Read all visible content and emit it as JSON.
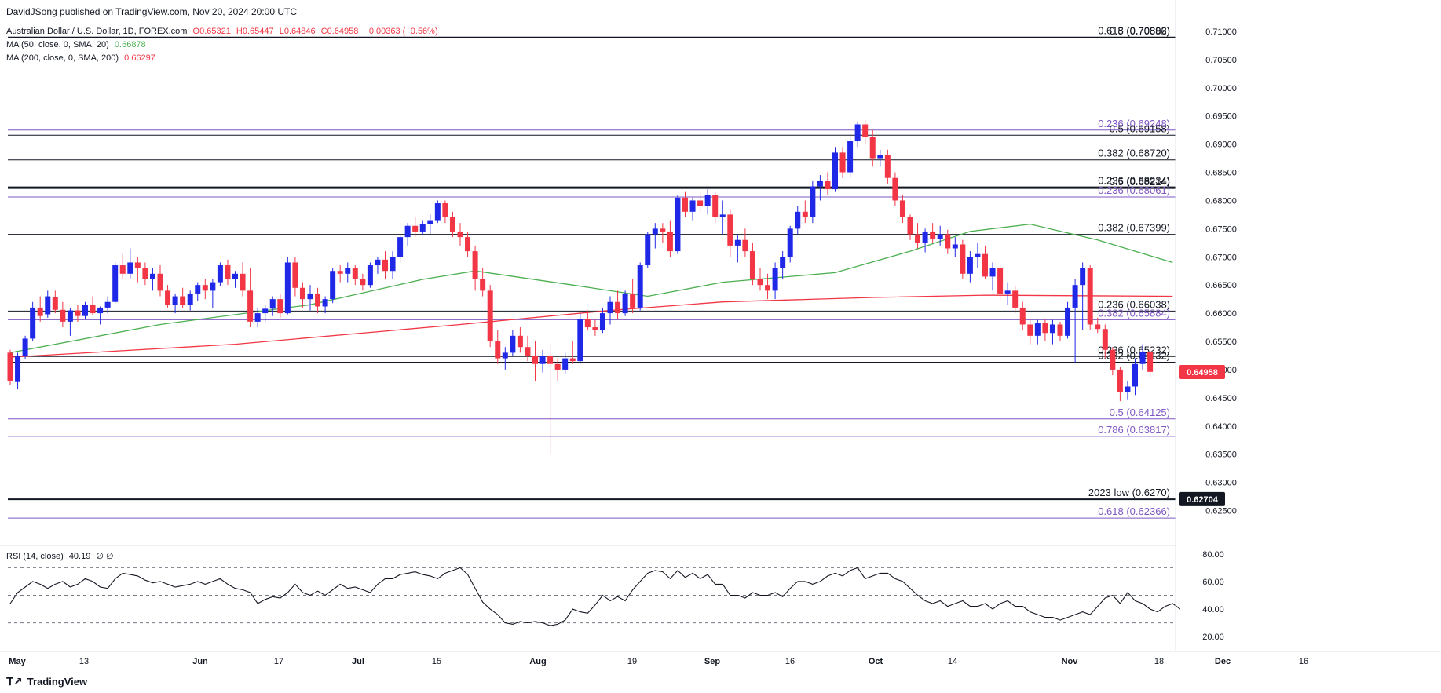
{
  "header": {
    "published": "DavidJSong published on TradingView.com, Nov 20, 2024 20:00 UTC",
    "symbol": "Australian Dollar / U.S. Dollar, 1D, FOREX.com",
    "o": "O0.65321",
    "h": "H0.65447",
    "l": "L0.64846",
    "c": "C0.64958",
    "chg": "−0.00363 (−0.56%)",
    "ma50_label": "MA (50, close, 0, SMA, 20)",
    "ma50_value": "0.66878",
    "ma200_label": "MA (200, close, 0, SMA, 200)",
    "ma200_value": "0.66297",
    "rsi_label": "RSI (14, close)",
    "rsi_value": "40.19",
    "rsi_extra": "∅ ∅"
  },
  "colors": {
    "up": "#2028e8",
    "down": "#f23645",
    "ma50": "#4caf50",
    "ma200": "#f23645",
    "fib": "#7e57c2",
    "level": "#131722",
    "bg": "#ffffff"
  },
  "footer": {
    "brand": "TradingView",
    "logo_icon": "tradingview-logo-icon"
  },
  "chart_data": {
    "type": "candlestick",
    "y_axis": {
      "min": 0.6195,
      "max": 0.7125,
      "ticks": [
        "0.71000",
        "0.70500",
        "0.70000",
        "0.69500",
        "0.69000",
        "0.68500",
        "0.68000",
        "0.67500",
        "0.67000",
        "0.66500",
        "0.66000",
        "0.65500",
        "0.65000",
        "0.64500",
        "0.64000",
        "0.63500",
        "0.63000",
        "0.62500"
      ]
    },
    "x_axis": {
      "labels": [
        "May",
        "13",
        "Jun",
        "17",
        "Jul",
        "15",
        "Aug",
        "19",
        "Sep",
        "16",
        "Oct",
        "14",
        "Nov",
        "18",
        "Dec",
        "16"
      ],
      "bold_labels": [
        "May",
        "Jun",
        "Jul",
        "Aug",
        "Sep",
        "Oct",
        "Nov",
        "Dec"
      ]
    },
    "current_price": "0.64958",
    "low_2023_tag": "0.62704",
    "levels": [
      {
        "price": 0.70892,
        "label": "0.618 (0.70892)",
        "color": "#131722",
        "thick": true
      },
      {
        "price": 0.70886,
        "label": "0.5 (0.70886)",
        "color": "#131722",
        "thick": false
      },
      {
        "price": 0.69248,
        "label": "0.236 (0.69248)",
        "color": "#7e57c2",
        "thick": false
      },
      {
        "price": 0.69158,
        "label": "0.5 (0.69158)",
        "color": "#131722",
        "thick": false
      },
      {
        "price": 0.6872,
        "label": "0.382 (0.68720)",
        "color": "#131722",
        "thick": false
      },
      {
        "price": 0.68234,
        "label": "0.236 (0.68234)",
        "color": "#131722",
        "thick": true
      },
      {
        "price": 0.68214,
        "label": "0.5 (0.68214)",
        "color": "#131722",
        "thick": false
      },
      {
        "price": 0.68061,
        "label": "0.236 (0.68061)",
        "color": "#7e57c2",
        "thick": false
      },
      {
        "price": 0.67399,
        "label": "0.382 (0.67399)",
        "color": "#131722",
        "thick": false
      },
      {
        "price": 0.66038,
        "label": "0.236 (0.66038)",
        "color": "#131722",
        "thick": false
      },
      {
        "price": 0.65884,
        "label": "0.382 (0.65884)",
        "color": "#7e57c2",
        "thick": false
      },
      {
        "price": 0.65232,
        "label": "0.236 (0.65232)",
        "color": "#131722",
        "thick": false
      },
      {
        "price": 0.65132,
        "label": "0.382 (0.65132)",
        "color": "#131722",
        "thick": false
      },
      {
        "price": 0.64125,
        "label": "0.5 (0.64125)",
        "color": "#7e57c2",
        "thick": false
      },
      {
        "price": 0.63817,
        "label": "0.786 (0.63817)",
        "color": "#7e57c2",
        "thick": false
      },
      {
        "price": 0.627,
        "label": "2023 low (0.6270)",
        "color": "#131722",
        "thick": true
      },
      {
        "price": 0.62366,
        "label": "0.618 (0.62366)",
        "color": "#7e57c2",
        "thick": false
      }
    ],
    "candles": [
      [
        0.653,
        0.6535,
        0.6472,
        0.648
      ],
      [
        0.6478,
        0.653,
        0.6465,
        0.6525
      ],
      [
        0.6524,
        0.656,
        0.6518,
        0.6555
      ],
      [
        0.6555,
        0.662,
        0.655,
        0.661
      ],
      [
        0.661,
        0.663,
        0.6585,
        0.6595
      ],
      [
        0.6598,
        0.664,
        0.6592,
        0.663
      ],
      [
        0.6628,
        0.664,
        0.66,
        0.6606
      ],
      [
        0.6606,
        0.662,
        0.6575,
        0.6585
      ],
      [
        0.6585,
        0.661,
        0.656,
        0.6605
      ],
      [
        0.6605,
        0.6615,
        0.6585,
        0.6595
      ],
      [
        0.6595,
        0.662,
        0.659,
        0.6615
      ],
      [
        0.6615,
        0.663,
        0.6596,
        0.66
      ],
      [
        0.66,
        0.6612,
        0.658,
        0.661
      ],
      [
        0.661,
        0.663,
        0.66,
        0.662
      ],
      [
        0.662,
        0.669,
        0.6618,
        0.6685
      ],
      [
        0.6685,
        0.6705,
        0.666,
        0.667
      ],
      [
        0.667,
        0.6715,
        0.666,
        0.669
      ],
      [
        0.669,
        0.67,
        0.6655,
        0.668
      ],
      [
        0.668,
        0.669,
        0.665,
        0.666
      ],
      [
        0.666,
        0.668,
        0.664,
        0.667
      ],
      [
        0.667,
        0.6685,
        0.663,
        0.664
      ],
      [
        0.664,
        0.665,
        0.661,
        0.6615
      ],
      [
        0.6615,
        0.6635,
        0.66,
        0.663
      ],
      [
        0.663,
        0.6645,
        0.661,
        0.6615
      ],
      [
        0.6615,
        0.664,
        0.6605,
        0.6635
      ],
      [
        0.6635,
        0.6655,
        0.6622,
        0.665
      ],
      [
        0.665,
        0.666,
        0.6625,
        0.664
      ],
      [
        0.664,
        0.666,
        0.661,
        0.6655
      ],
      [
        0.6655,
        0.669,
        0.6648,
        0.6685
      ],
      [
        0.6685,
        0.6695,
        0.665,
        0.666
      ],
      [
        0.666,
        0.6675,
        0.6645,
        0.667
      ],
      [
        0.667,
        0.669,
        0.663,
        0.664
      ],
      [
        0.664,
        0.668,
        0.6575,
        0.6585
      ],
      [
        0.6585,
        0.661,
        0.6575,
        0.66
      ],
      [
        0.66,
        0.6615,
        0.6585,
        0.6608
      ],
      [
        0.6608,
        0.663,
        0.6595,
        0.6625
      ],
      [
        0.6625,
        0.6635,
        0.6592,
        0.66
      ],
      [
        0.66,
        0.67,
        0.6598,
        0.669
      ],
      [
        0.669,
        0.67,
        0.663,
        0.6645
      ],
      [
        0.6645,
        0.6655,
        0.661,
        0.6625
      ],
      [
        0.6625,
        0.665,
        0.6605,
        0.6635
      ],
      [
        0.6635,
        0.6645,
        0.66,
        0.6612
      ],
      [
        0.6612,
        0.663,
        0.66,
        0.6625
      ],
      [
        0.6625,
        0.668,
        0.6618,
        0.6675
      ],
      [
        0.6675,
        0.6685,
        0.6655,
        0.667
      ],
      [
        0.667,
        0.669,
        0.6655,
        0.668
      ],
      [
        0.668,
        0.6685,
        0.665,
        0.666
      ],
      [
        0.666,
        0.667,
        0.664,
        0.665
      ],
      [
        0.665,
        0.669,
        0.6645,
        0.6685
      ],
      [
        0.6685,
        0.67,
        0.667,
        0.6695
      ],
      [
        0.6695,
        0.671,
        0.666,
        0.6675
      ],
      [
        0.6675,
        0.671,
        0.666,
        0.67
      ],
      [
        0.67,
        0.674,
        0.669,
        0.6735
      ],
      [
        0.6735,
        0.676,
        0.672,
        0.6755
      ],
      [
        0.6755,
        0.677,
        0.6735,
        0.6745
      ],
      [
        0.6745,
        0.6765,
        0.6738,
        0.6758
      ],
      [
        0.6758,
        0.6775,
        0.674,
        0.6765
      ],
      [
        0.6765,
        0.68,
        0.676,
        0.6795
      ],
      [
        0.6795,
        0.68,
        0.676,
        0.677
      ],
      [
        0.677,
        0.678,
        0.6735,
        0.6745
      ],
      [
        0.6745,
        0.676,
        0.672,
        0.6735
      ],
      [
        0.6735,
        0.6745,
        0.67,
        0.671
      ],
      [
        0.671,
        0.672,
        0.664,
        0.666
      ],
      [
        0.666,
        0.668,
        0.663,
        0.664
      ],
      [
        0.664,
        0.665,
        0.654,
        0.655
      ],
      [
        0.655,
        0.657,
        0.651,
        0.652
      ],
      [
        0.652,
        0.654,
        0.65,
        0.653
      ],
      [
        0.653,
        0.657,
        0.6525,
        0.656
      ],
      [
        0.656,
        0.6575,
        0.653,
        0.654
      ],
      [
        0.654,
        0.656,
        0.6515,
        0.6525
      ],
      [
        0.6525,
        0.655,
        0.648,
        0.651
      ],
      [
        0.651,
        0.6535,
        0.6495,
        0.6525
      ],
      [
        0.6525,
        0.6545,
        0.635,
        0.651
      ],
      [
        0.651,
        0.652,
        0.648,
        0.65
      ],
      [
        0.65,
        0.653,
        0.6492,
        0.652
      ],
      [
        0.652,
        0.655,
        0.651,
        0.6515
      ],
      [
        0.6515,
        0.66,
        0.651,
        0.659
      ],
      [
        0.659,
        0.6605,
        0.657,
        0.6575
      ],
      [
        0.6575,
        0.659,
        0.656,
        0.657
      ],
      [
        0.657,
        0.661,
        0.6565,
        0.66
      ],
      [
        0.66,
        0.663,
        0.658,
        0.662
      ],
      [
        0.662,
        0.664,
        0.659,
        0.66
      ],
      [
        0.66,
        0.664,
        0.6595,
        0.6635
      ],
      [
        0.6635,
        0.666,
        0.66,
        0.661
      ],
      [
        0.661,
        0.669,
        0.6605,
        0.6685
      ],
      [
        0.6685,
        0.6745,
        0.668,
        0.674
      ],
      [
        0.674,
        0.676,
        0.6715,
        0.675
      ],
      [
        0.675,
        0.676,
        0.6725,
        0.6745
      ],
      [
        0.6745,
        0.6765,
        0.67,
        0.671
      ],
      [
        0.671,
        0.681,
        0.6705,
        0.6805
      ],
      [
        0.6805,
        0.6815,
        0.677,
        0.678
      ],
      [
        0.678,
        0.6805,
        0.6765,
        0.68
      ],
      [
        0.68,
        0.6815,
        0.678,
        0.679
      ],
      [
        0.679,
        0.682,
        0.6775,
        0.681
      ],
      [
        0.681,
        0.6815,
        0.676,
        0.677
      ],
      [
        0.677,
        0.68,
        0.674,
        0.6775
      ],
      [
        0.6775,
        0.6785,
        0.67,
        0.672
      ],
      [
        0.672,
        0.674,
        0.669,
        0.673
      ],
      [
        0.673,
        0.675,
        0.67,
        0.671
      ],
      [
        0.671,
        0.6725,
        0.665,
        0.666
      ],
      [
        0.666,
        0.668,
        0.664,
        0.665
      ],
      [
        0.665,
        0.667,
        0.6625,
        0.664
      ],
      [
        0.664,
        0.669,
        0.6625,
        0.668
      ],
      [
        0.668,
        0.671,
        0.666,
        0.67
      ],
      [
        0.67,
        0.6755,
        0.669,
        0.675
      ],
      [
        0.675,
        0.679,
        0.674,
        0.678
      ],
      [
        0.678,
        0.68,
        0.676,
        0.677
      ],
      [
        0.677,
        0.6835,
        0.676,
        0.6825
      ],
      [
        0.6825,
        0.6845,
        0.68,
        0.6835
      ],
      [
        0.6835,
        0.685,
        0.681,
        0.682
      ],
      [
        0.682,
        0.6895,
        0.6815,
        0.6885
      ],
      [
        0.6885,
        0.6895,
        0.684,
        0.685
      ],
      [
        0.685,
        0.6915,
        0.684,
        0.6905
      ],
      [
        0.6905,
        0.694,
        0.6895,
        0.6935
      ],
      [
        0.6935,
        0.6942,
        0.69,
        0.6912
      ],
      [
        0.6912,
        0.6925,
        0.686,
        0.6875
      ],
      [
        0.6875,
        0.689,
        0.686,
        0.688
      ],
      [
        0.688,
        0.689,
        0.683,
        0.684
      ],
      [
        0.684,
        0.685,
        0.679,
        0.68
      ],
      [
        0.68,
        0.681,
        0.676,
        0.677
      ],
      [
        0.677,
        0.6775,
        0.673,
        0.674
      ],
      [
        0.674,
        0.676,
        0.6715,
        0.6725
      ],
      [
        0.6725,
        0.675,
        0.6708,
        0.6745
      ],
      [
        0.6745,
        0.676,
        0.6725,
        0.6732
      ],
      [
        0.6732,
        0.6755,
        0.672,
        0.674
      ],
      [
        0.674,
        0.6748,
        0.6705,
        0.6715
      ],
      [
        0.6715,
        0.6735,
        0.67,
        0.6722
      ],
      [
        0.6722,
        0.673,
        0.666,
        0.667
      ],
      [
        0.667,
        0.671,
        0.6655,
        0.67
      ],
      [
        0.67,
        0.6725,
        0.668,
        0.6705
      ],
      [
        0.6705,
        0.672,
        0.666,
        0.6665
      ],
      [
        0.6665,
        0.669,
        0.664,
        0.668
      ],
      [
        0.668,
        0.6685,
        0.6625,
        0.6635
      ],
      [
        0.6635,
        0.6655,
        0.6615,
        0.664
      ],
      [
        0.664,
        0.6648,
        0.66,
        0.661
      ],
      [
        0.661,
        0.662,
        0.657,
        0.658
      ],
      [
        0.658,
        0.659,
        0.6545,
        0.656
      ],
      [
        0.656,
        0.6588,
        0.6545,
        0.6582
      ],
      [
        0.6582,
        0.659,
        0.655,
        0.6565
      ],
      [
        0.6565,
        0.6588,
        0.6545,
        0.658
      ],
      [
        0.658,
        0.6585,
        0.655,
        0.656
      ],
      [
        0.656,
        0.662,
        0.6555,
        0.661
      ],
      [
        0.661,
        0.666,
        0.6512,
        0.665
      ],
      [
        0.665,
        0.669,
        0.657,
        0.668
      ],
      [
        0.668,
        0.6685,
        0.657,
        0.658
      ],
      [
        0.658,
        0.6592,
        0.6565,
        0.6572
      ],
      [
        0.6572,
        0.658,
        0.652,
        0.6535
      ],
      [
        0.6535,
        0.654,
        0.649,
        0.65
      ],
      [
        0.65,
        0.6505,
        0.6444,
        0.646
      ],
      [
        0.646,
        0.648,
        0.6446,
        0.647
      ],
      [
        0.647,
        0.652,
        0.6455,
        0.651
      ],
      [
        0.651,
        0.6545,
        0.65,
        0.6532
      ],
      [
        0.6532,
        0.6545,
        0.6485,
        0.6496
      ]
    ],
    "ma50": [
      [
        0,
        0.653
      ],
      [
        20,
        0.658
      ],
      [
        40,
        0.6615
      ],
      [
        55,
        0.666
      ],
      [
        62,
        0.6675
      ],
      [
        75,
        0.665
      ],
      [
        85,
        0.663
      ],
      [
        95,
        0.6655
      ],
      [
        110,
        0.6672
      ],
      [
        120,
        0.671
      ],
      [
        128,
        0.6745
      ],
      [
        136,
        0.6758
      ],
      [
        145,
        0.673
      ],
      [
        155,
        0.669
      ]
    ],
    "ma200": [
      [
        0,
        0.6522
      ],
      [
        30,
        0.6545
      ],
      [
        60,
        0.658
      ],
      [
        80,
        0.6605
      ],
      [
        95,
        0.662
      ],
      [
        115,
        0.6628
      ],
      [
        130,
        0.6632
      ],
      [
        155,
        0.663
      ]
    ],
    "rsi": {
      "levels": [
        "80.00",
        "60.00",
        "40.00",
        "20.00"
      ],
      "upper": 70,
      "mid": 50,
      "lower": 30,
      "min": 15,
      "max": 85,
      "values": [
        44,
        52,
        56,
        60,
        58,
        55,
        58,
        60,
        56,
        58,
        62,
        60,
        56,
        55,
        62,
        66,
        65,
        64,
        61,
        59,
        60,
        58,
        56,
        57,
        58,
        60,
        58,
        60,
        62,
        58,
        55,
        54,
        52,
        44,
        47,
        49,
        48,
        52,
        58,
        52,
        50,
        53,
        50,
        54,
        58,
        55,
        56,
        54,
        52,
        58,
        62,
        62,
        65,
        66,
        67,
        65,
        64,
        62,
        66,
        68,
        70,
        65,
        55,
        45,
        40,
        36,
        30,
        29,
        31,
        30,
        31,
        30,
        28,
        29,
        32,
        40,
        38,
        37,
        43,
        50,
        46,
        49,
        46,
        54,
        60,
        66,
        68,
        67,
        62,
        68,
        63,
        66,
        62,
        65,
        58,
        58,
        50,
        50,
        48,
        52,
        50,
        50,
        52,
        49,
        55,
        60,
        60,
        58,
        60,
        64,
        66,
        64,
        68,
        70,
        62,
        64,
        66,
        66,
        62,
        60,
        55,
        50,
        46,
        44,
        46,
        42,
        44,
        46,
        42,
        42,
        44,
        40,
        44,
        46,
        42,
        42,
        38,
        36,
        34,
        34,
        32,
        34,
        36,
        38,
        36,
        42,
        48,
        50,
        44,
        52,
        46,
        44,
        40,
        38,
        42,
        44,
        40
      ]
    }
  }
}
